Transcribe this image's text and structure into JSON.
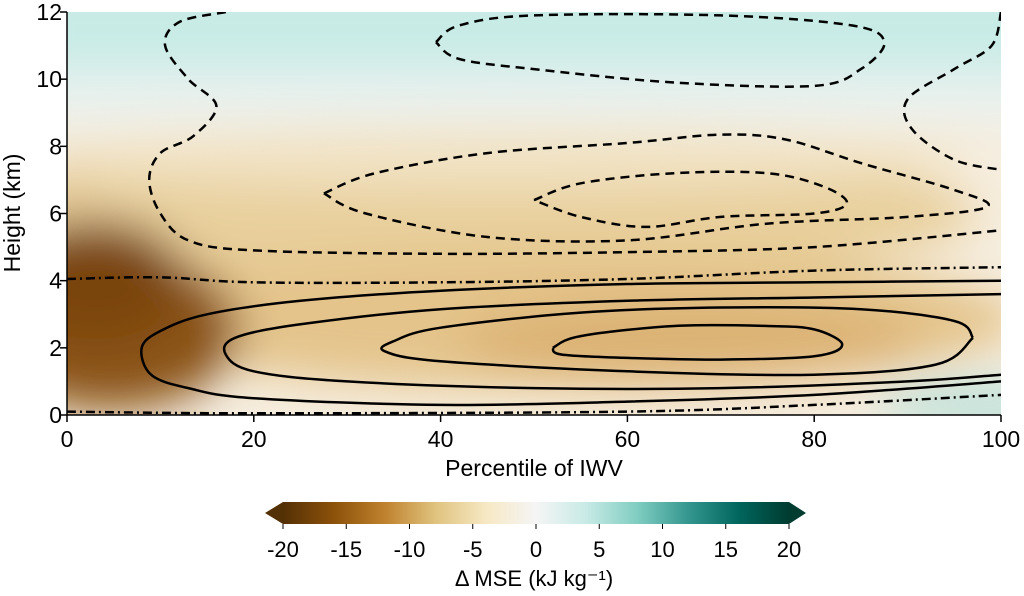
{
  "chart_data": {
    "type": "heatmap",
    "title": "",
    "xlabel": "Percentile of IWV",
    "ylabel": "Height (km)",
    "xlim": [
      0,
      100
    ],
    "ylim": [
      0,
      12
    ],
    "xticks": [
      0,
      20,
      40,
      60,
      80,
      100
    ],
    "yticks": [
      0,
      2,
      4,
      6,
      8,
      10,
      12
    ],
    "colorbar": {
      "label": "Δ MSE (kJ kg⁻¹)",
      "range": [
        -20,
        20
      ],
      "ticks": [
        -20,
        -15,
        -10,
        -5,
        0,
        5,
        10,
        15,
        20
      ],
      "colormap": "BrBG",
      "extend": "both",
      "colors": [
        "#543005",
        "#8c510a",
        "#bf812d",
        "#dfc27d",
        "#f6e8c3",
        "#f5f5f5",
        "#c7eae5",
        "#80cdc1",
        "#35978f",
        "#01665e",
        "#003c30"
      ]
    },
    "field_description_points": [
      {
        "x": 0,
        "height": 3,
        "value": -20
      },
      {
        "x": 0,
        "height": 5,
        "value": -16
      },
      {
        "x": 10,
        "height": 7,
        "value": -8
      },
      {
        "x": 50,
        "height": 6,
        "value": -7
      },
      {
        "x": 70,
        "height": 2,
        "value": -10
      },
      {
        "x": 100,
        "height": 2,
        "value": -3
      },
      {
        "x": 50,
        "height": 11,
        "value": 3
      },
      {
        "x": 98,
        "height": 0.2,
        "value": 5
      }
    ],
    "contours": {
      "negative_dashed": [
        {
          "name": "n1",
          "points": [
            [
              17,
              12
            ],
            [
              12,
              11.7
            ],
            [
              10.5,
              11
            ],
            [
              13,
              10
            ],
            [
              16,
              9.2
            ],
            [
              13.5,
              8.3
            ],
            [
              10,
              7.8
            ],
            [
              8.8,
              7
            ],
            [
              10,
              6
            ],
            [
              13,
              5.2
            ],
            [
              20,
              4.9
            ],
            [
              40,
              4.8
            ],
            [
              60,
              4.85
            ],
            [
              80,
              5
            ],
            [
              100,
              5.5
            ]
          ]
        },
        {
          "name": "n2",
          "points": [
            [
              100,
              12
            ],
            [
              99,
              11
            ],
            [
              95,
              10.3
            ],
            [
              90,
              9.4
            ],
            [
              90.5,
              8.5
            ],
            [
              95,
              7.6
            ],
            [
              100,
              7.3
            ]
          ]
        },
        {
          "name": "n3",
          "points": [
            [
              39.5,
              11.1
            ],
            [
              42,
              11.6
            ],
            [
              50,
              11.9
            ],
            [
              70,
              11.9
            ],
            [
              84,
              11.6
            ],
            [
              87.5,
              11.1
            ],
            [
              85,
              10.3
            ],
            [
              80,
              9.8
            ],
            [
              65,
              9.9
            ],
            [
              50,
              10.3
            ],
            [
              42,
              10.6
            ],
            [
              39.5,
              11.1
            ]
          ]
        },
        {
          "name": "n4",
          "points": [
            [
              27.5,
              6.6
            ],
            [
              33,
              7.2
            ],
            [
              45,
              7.8
            ],
            [
              60,
              8.1
            ],
            [
              70,
              8.35
            ],
            [
              77,
              8.2
            ],
            [
              85,
              7.5
            ],
            [
              95,
              6.7
            ],
            [
              98.5,
              6.2
            ],
            [
              90,
              5.9
            ],
            [
              75,
              5.7
            ],
            [
              60,
              5.2
            ],
            [
              45,
              5.3
            ],
            [
              32,
              6.0
            ],
            [
              27.5,
              6.6
            ]
          ]
        },
        {
          "name": "n5",
          "points": [
            [
              50,
              6.4
            ],
            [
              55,
              6.9
            ],
            [
              65,
              7.2
            ],
            [
              75,
              7.2
            ],
            [
              81,
              6.8
            ],
            [
              83.5,
              6.3
            ],
            [
              80,
              6.0
            ],
            [
              70,
              5.9
            ],
            [
              62,
              5.6
            ],
            [
              55,
              5.9
            ],
            [
              50,
              6.4
            ]
          ]
        }
      ],
      "zero_dashdot": [
        {
          "name": "z-top",
          "points": [
            [
              0,
              4.05
            ],
            [
              10,
              4.1
            ],
            [
              20,
              3.95
            ],
            [
              40,
              3.95
            ],
            [
              60,
              4.05
            ],
            [
              80,
              4.3
            ],
            [
              100,
              4.4
            ]
          ]
        },
        {
          "name": "z-bottom",
          "points": [
            [
              0,
              0.1
            ],
            [
              20,
              0.05
            ],
            [
              60,
              0.1
            ],
            [
              80,
              0.3
            ],
            [
              100,
              0.6
            ]
          ]
        }
      ],
      "positive_solid": [
        {
          "name": "p1",
          "points": [
            [
              100,
              4.0
            ],
            [
              80,
              3.95
            ],
            [
              60,
              3.9
            ],
            [
              40,
              3.7
            ],
            [
              25,
              3.4
            ],
            [
              15,
              3.0
            ],
            [
              10,
              2.5
            ],
            [
              8,
              2.0
            ],
            [
              9,
              1.2
            ],
            [
              13,
              0.8
            ],
            [
              20,
              0.5
            ],
            [
              40,
              0.3
            ],
            [
              60,
              0.4
            ],
            [
              80,
              0.6
            ],
            [
              100,
              1.0
            ]
          ]
        },
        {
          "name": "p2",
          "points": [
            [
              100,
              3.6
            ],
            [
              80,
              3.5
            ],
            [
              60,
              3.4
            ],
            [
              40,
              3.15
            ],
            [
              25,
              2.7
            ],
            [
              18,
              2.3
            ],
            [
              17,
              1.8
            ],
            [
              20,
              1.3
            ],
            [
              30,
              1.0
            ],
            [
              50,
              0.8
            ],
            [
              70,
              0.8
            ],
            [
              90,
              1.0
            ],
            [
              100,
              1.2
            ]
          ]
        },
        {
          "name": "p3",
          "points": [
            [
              97,
              2.3
            ],
            [
              95,
              2.8
            ],
            [
              85,
              3.15
            ],
            [
              70,
              3.2
            ],
            [
              55,
              3.05
            ],
            [
              40,
              2.6
            ],
            [
              35,
              2.2
            ],
            [
              34,
              1.9
            ],
            [
              40,
              1.6
            ],
            [
              60,
              1.3
            ],
            [
              80,
              1.2
            ],
            [
              93,
              1.5
            ],
            [
              97,
              2.3
            ]
          ]
        },
        {
          "name": "p4",
          "points": [
            [
              52,
              2.0
            ],
            [
              55,
              2.35
            ],
            [
              65,
              2.65
            ],
            [
              75,
              2.65
            ],
            [
              80,
              2.55
            ],
            [
              83,
              2.1
            ],
            [
              80,
              1.75
            ],
            [
              70,
              1.65
            ],
            [
              60,
              1.7
            ],
            [
              53,
              1.8
            ],
            [
              52,
              2.0
            ]
          ]
        }
      ]
    }
  }
}
